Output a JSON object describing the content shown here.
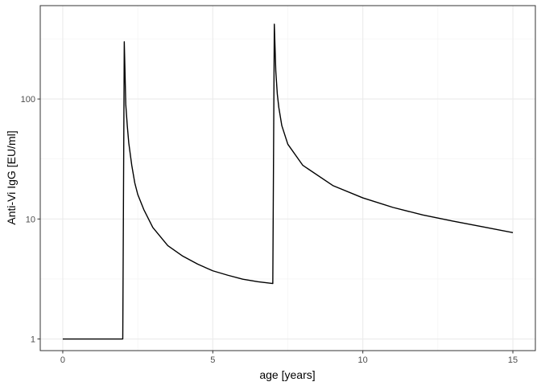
{
  "chart_data": {
    "type": "line",
    "title": "",
    "xlabel": "age [years]",
    "ylabel": "Anti-Vi IgG [EU/ml]",
    "xlim": [
      -0.75,
      15.75
    ],
    "ylim": [
      0.8,
      600
    ],
    "yscale": "log",
    "grid": true,
    "legend": "none",
    "x_ticks": [
      0,
      5,
      10,
      15
    ],
    "x_tick_labels": [
      "0",
      "5",
      "10",
      "15"
    ],
    "y_ticks": [
      1,
      10,
      100
    ],
    "y_tick_labels": [
      "1",
      "10",
      "100"
    ],
    "series": [
      {
        "color": "#000000",
        "x": [
          0,
          2.0,
          2.05,
          2.1,
          2.15,
          2.2,
          2.3,
          2.4,
          2.5,
          2.7,
          3.0,
          3.5,
          4.0,
          4.5,
          5.0,
          5.5,
          6.0,
          6.5,
          7.0,
          7.05,
          7.1,
          7.15,
          7.2,
          7.3,
          7.5,
          8.0,
          9.0,
          10.0,
          11.0,
          12.0,
          13.0,
          14.0,
          15.0
        ],
        "y": [
          1,
          1,
          300,
          90,
          60,
          43,
          28,
          20,
          16,
          12,
          8.5,
          6.0,
          4.9,
          4.2,
          3.7,
          3.4,
          3.15,
          3.0,
          2.9,
          420,
          170,
          110,
          85,
          60,
          42,
          28,
          19,
          15,
          12.5,
          10.8,
          9.6,
          8.6,
          7.7
        ]
      }
    ]
  }
}
